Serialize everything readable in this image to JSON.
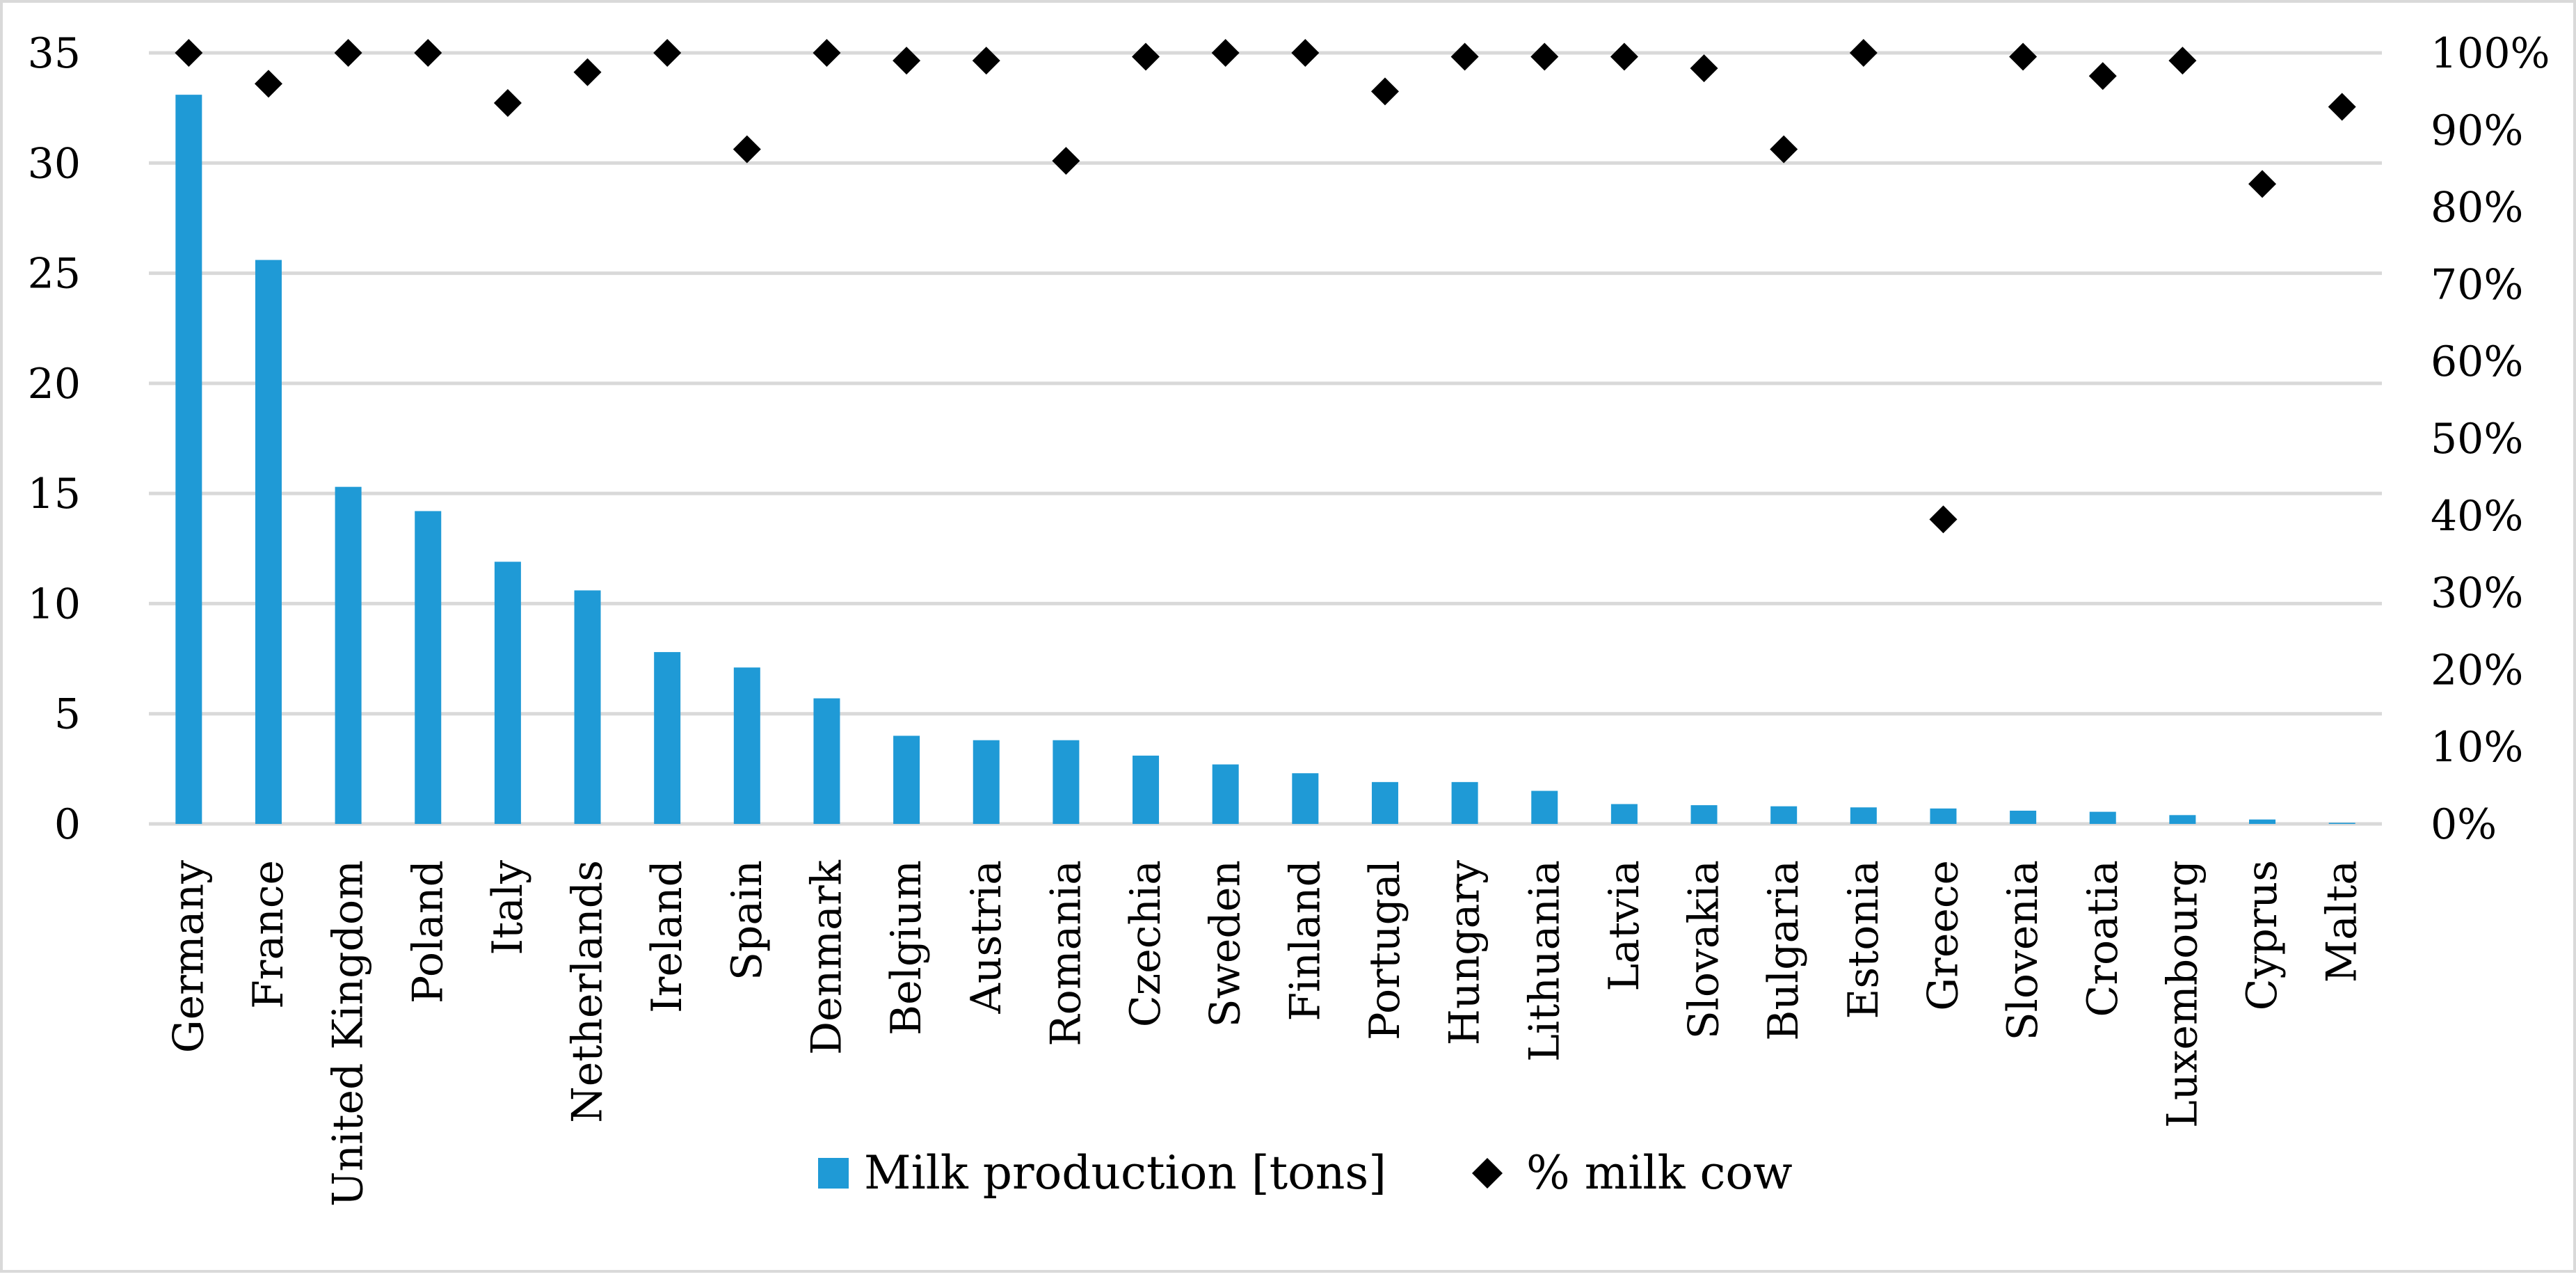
{
  "chart_data": {
    "type": "bar",
    "categories": [
      "Germany",
      "France",
      "United Kingdom",
      "Poland",
      "Italy",
      "Netherlands",
      "Ireland",
      "Spain",
      "Denmark",
      "Belgium",
      "Austria",
      "Romania",
      "Czechia",
      "Sweden",
      "Finland",
      "Portugal",
      "Hungary",
      "Lithuania",
      "Latvia",
      "Slovakia",
      "Bulgaria",
      "Estonia",
      "Greece",
      "Slovenia",
      "Croatia",
      "Luxembourg",
      "Cyprus",
      "Malta"
    ],
    "series": [
      {
        "name": "Milk production [tons]",
        "type": "bar",
        "axis": "left",
        "color": "#1f9ad6",
        "values": [
          33.1,
          25.6,
          15.3,
          14.2,
          11.9,
          10.6,
          7.8,
          7.1,
          5.7,
          4.0,
          3.8,
          3.8,
          3.1,
          2.7,
          2.3,
          1.9,
          1.9,
          1.5,
          0.9,
          0.85,
          0.8,
          0.75,
          0.7,
          0.6,
          0.55,
          0.4,
          0.2,
          0.05
        ]
      },
      {
        "name": "% milk cow",
        "type": "scatter",
        "axis": "right",
        "marker": "diamond",
        "color": "#000000",
        "values": [
          1.0,
          0.96,
          1.0,
          1.0,
          0.935,
          0.975,
          1.0,
          0.875,
          1.0,
          0.99,
          0.99,
          0.86,
          0.995,
          1.0,
          1.0,
          0.95,
          0.995,
          0.995,
          0.995,
          0.98,
          0.875,
          1.0,
          0.395,
          0.995,
          0.97,
          0.99,
          0.83,
          0.93
        ]
      }
    ],
    "y_left": {
      "ylim": [
        0,
        35
      ],
      "ticks": [
        "0",
        "5",
        "10",
        "15",
        "20",
        "25",
        "30",
        "35"
      ]
    },
    "y_right": {
      "ylim": [
        0,
        1
      ],
      "ticks": [
        "0%",
        "10%",
        "20%",
        "30%",
        "40%",
        "50%",
        "60%",
        "70%",
        "80%",
        "90%",
        "100%"
      ]
    },
    "legend": {
      "position": "bottom",
      "entries": [
        "Milk production [tons]",
        "% milk cow"
      ]
    },
    "grid": true
  }
}
